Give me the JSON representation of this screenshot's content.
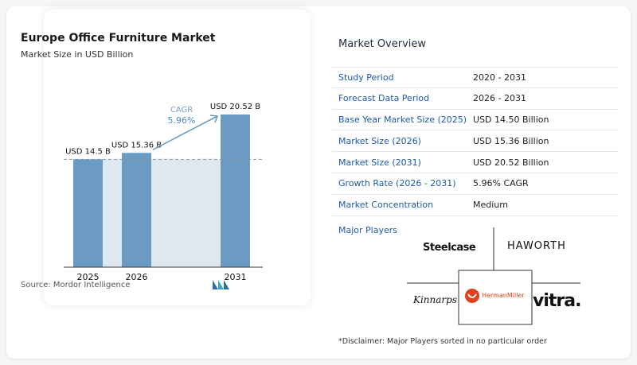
{
  "chart_data": {
    "type": "bar",
    "title": "Europe Office Furniture Market",
    "subtitle": "Market Size in USD Billion",
    "categories": [
      "2025",
      "2026",
      "2031"
    ],
    "values": [
      14.5,
      15.36,
      20.52
    ],
    "data_labels": [
      "USD 14.5 B",
      "USD 15.36 B",
      "USD 20.52 B"
    ],
    "cagr_label": "CAGR",
    "cagr_value": "5.96%",
    "ylim": [
      0,
      20.52
    ],
    "bar_color": "#6b9bc3",
    "shade_color": "#dde8f1",
    "grid": false
  },
  "source": "Source:  Mordor Intelligence",
  "overview": {
    "title": "Market Overview",
    "rows": [
      {
        "label": "Study Period",
        "value": "2020 - 2031"
      },
      {
        "label": "Forecast Data Period",
        "value": "2026 - 2031"
      },
      {
        "label": "Base Year Market Size (2025)",
        "value": "USD 14.50 Billion"
      },
      {
        "label": "Market Size (2026)",
        "value": "USD 15.36 Billion"
      },
      {
        "label": "Market Size (2031)",
        "value": "USD 20.52 Billion"
      },
      {
        "label": "Growth Rate (2026 - 2031)",
        "value": "5.96% CAGR"
      },
      {
        "label": "Market Concentration",
        "value": "Medium"
      }
    ]
  },
  "players": {
    "title": "Major Players",
    "logos": [
      "Steelcase",
      "HAWORTH",
      "Kinnarps",
      "HermanMiller",
      "vitra."
    ]
  },
  "disclaimer": "*Disclaimer: Major Players sorted in no particular order"
}
